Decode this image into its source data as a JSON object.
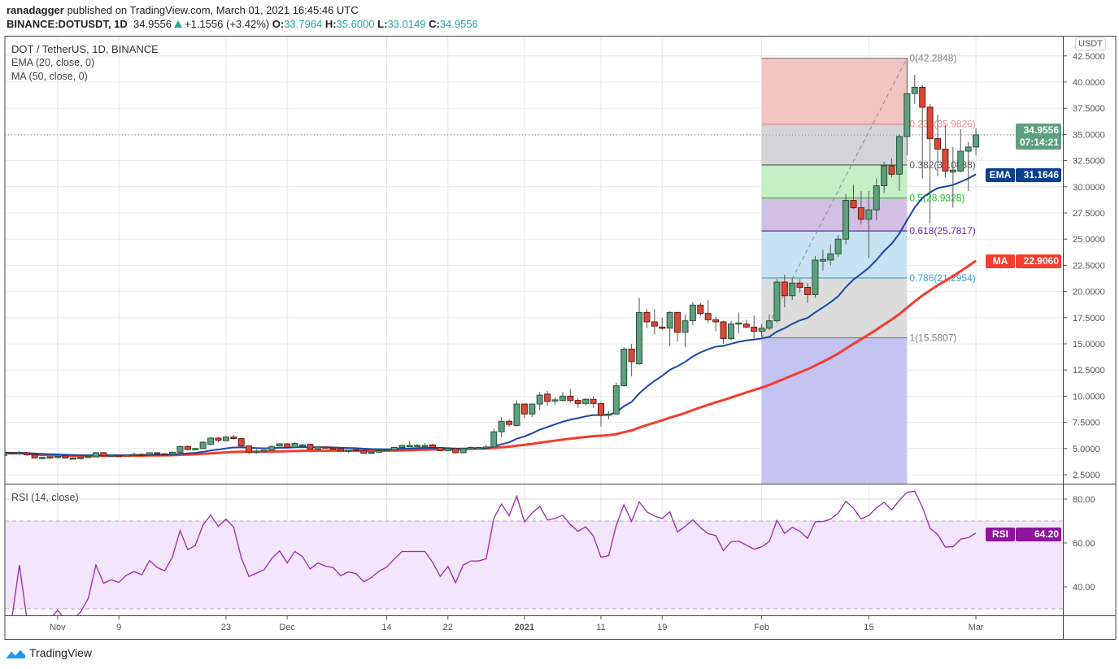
{
  "header": {
    "author": "ranadagger",
    "published": "published on TradingView.com, March 01, 2021 16:45:46 UTC",
    "symbol": "BINANCE:DOTUSDT, 1D",
    "last": "34.9556",
    "change": "+1.1556 (+3.42%)",
    "o_label": "O:",
    "o": "33.7964",
    "h_label": "H:",
    "h": "35.6000",
    "l_label": "L:",
    "l": "33.0149",
    "c_label": "C:",
    "c": "34.9556"
  },
  "legend": {
    "title": "DOT / TetherUS, 1D, BINANCE",
    "ema": "EMA (20, close, 0)",
    "ma": "MA (50, close, 0)",
    "rsi": "RSI (14, close)"
  },
  "currency_button": "USDT",
  "price_tag": {
    "value": "34.9556",
    "countdown": "07:14:21",
    "color": "#5b9f7c"
  },
  "ema_tag": {
    "label": "EMA",
    "value": "31.1646",
    "color": "#0d3f8f"
  },
  "ma_tag": {
    "label": "MA",
    "value": "22.9060",
    "color": "#f23d2f"
  },
  "rsi_tag": {
    "label": "RSI",
    "value": "64.20",
    "color": "#8e1599"
  },
  "footer": {
    "brand": "TradingView"
  },
  "colors": {
    "up": "#5e9f7c",
    "up_border": "#24553a",
    "down": "#d8493a",
    "down_border": "#6e1a10",
    "ema": "#1848a8",
    "ma": "#f23d2f",
    "rsi": "#9c27b0"
  },
  "chart_data": {
    "type": "candlestick",
    "title": "DOT / TetherUS, 1D, BINANCE",
    "start_date": "2020-10-25",
    "interval": "1D",
    "ylim": [
      2.5,
      42.5
    ],
    "y_ticks": [
      "2.5000",
      "5.0000",
      "7.5000",
      "10.0000",
      "12.5000",
      "15.0000",
      "17.5000",
      "20.0000",
      "22.5000",
      "25.0000",
      "27.5000",
      "30.0000",
      "32.5000",
      "35.0000",
      "37.5000",
      "40.0000",
      "42.5000"
    ],
    "x_ticks": [
      {
        "label": "Nov",
        "index": 7
      },
      {
        "label": "9",
        "index": 15
      },
      {
        "label": "23",
        "index": 29
      },
      {
        "label": "Dec",
        "index": 37
      },
      {
        "label": "14",
        "index": 50
      },
      {
        "label": "22",
        "index": 58
      },
      {
        "label": "2021",
        "index": 68
      },
      {
        "label": "11",
        "index": 78
      },
      {
        "label": "19",
        "index": 86
      },
      {
        "label": "Feb",
        "index": 99
      },
      {
        "label": "15",
        "index": 113
      },
      {
        "label": "Mar",
        "index": 127
      }
    ],
    "ohlc": [
      [
        4.35,
        4.7,
        4.3,
        4.6
      ],
      [
        4.6,
        4.7,
        4.45,
        4.5
      ],
      [
        4.5,
        4.75,
        4.4,
        4.6
      ],
      [
        4.6,
        4.65,
        4.3,
        4.4
      ],
      [
        4.4,
        4.45,
        4.05,
        4.1
      ],
      [
        4.1,
        4.2,
        3.95,
        4.15
      ],
      [
        4.15,
        4.25,
        4.05,
        4.2
      ],
      [
        4.2,
        4.3,
        4.1,
        4.25
      ],
      [
        4.3,
        4.35,
        4.05,
        4.1
      ],
      [
        4.1,
        4.15,
        3.95,
        4.1
      ],
      [
        4.1,
        4.2,
        3.95,
        4.15
      ],
      [
        4.15,
        4.3,
        4.1,
        4.25
      ],
      [
        4.2,
        4.7,
        4.2,
        4.6
      ],
      [
        4.6,
        4.65,
        4.25,
        4.3
      ],
      [
        4.3,
        4.4,
        4.25,
        4.35
      ],
      [
        4.35,
        4.4,
        4.25,
        4.3
      ],
      [
        4.3,
        4.45,
        4.25,
        4.4
      ],
      [
        4.4,
        4.6,
        4.35,
        4.45
      ],
      [
        4.45,
        4.55,
        4.35,
        4.4
      ],
      [
        4.4,
        4.65,
        4.35,
        4.6
      ],
      [
        4.6,
        4.65,
        4.45,
        4.5
      ],
      [
        4.5,
        4.55,
        4.4,
        4.45
      ],
      [
        4.45,
        4.7,
        4.4,
        4.65
      ],
      [
        4.65,
        5.3,
        4.6,
        5.2
      ],
      [
        5.2,
        5.3,
        4.85,
        4.9
      ],
      [
        4.95,
        5.05,
        4.85,
        5.0
      ],
      [
        5.0,
        5.7,
        4.95,
        5.6
      ],
      [
        5.4,
        6.1,
        5.3,
        6.0
      ],
      [
        6.0,
        6.1,
        5.6,
        5.8
      ],
      [
        5.75,
        6.2,
        5.7,
        6.1
      ],
      [
        6.1,
        6.3,
        5.85,
        5.95
      ],
      [
        5.95,
        6.0,
        5.15,
        5.25
      ],
      [
        5.25,
        5.3,
        4.5,
        4.65
      ],
      [
        4.65,
        4.9,
        4.5,
        4.75
      ],
      [
        4.75,
        4.9,
        4.6,
        4.85
      ],
      [
        4.85,
        5.3,
        4.8,
        5.2
      ],
      [
        5.25,
        5.5,
        5.2,
        5.45
      ],
      [
        5.45,
        5.5,
        5.05,
        5.1
      ],
      [
        5.1,
        5.6,
        5.05,
        5.5
      ],
      [
        5.35,
        5.45,
        5.25,
        5.35
      ],
      [
        5.4,
        5.45,
        4.9,
        4.95
      ],
      [
        4.95,
        5.2,
        4.9,
        5.15
      ],
      [
        5.15,
        5.2,
        5.0,
        5.05
      ],
      [
        5.05,
        5.1,
        4.95,
        5.0
      ],
      [
        5.0,
        5.05,
        4.7,
        4.75
      ],
      [
        4.75,
        4.9,
        4.6,
        4.85
      ],
      [
        4.9,
        4.95,
        4.75,
        4.8
      ],
      [
        4.8,
        4.85,
        4.5,
        4.55
      ],
      [
        4.55,
        4.7,
        4.5,
        4.65
      ],
      [
        4.65,
        4.85,
        4.6,
        4.8
      ],
      [
        4.85,
        4.95,
        4.8,
        4.9
      ],
      [
        4.85,
        5.15,
        4.8,
        5.1
      ],
      [
        5.1,
        5.35,
        5.05,
        5.3
      ],
      [
        5.3,
        5.7,
        5.25,
        5.3
      ],
      [
        5.3,
        5.45,
        5.2,
        5.3
      ],
      [
        5.3,
        5.55,
        5.25,
        5.3
      ],
      [
        5.35,
        5.45,
        5.05,
        5.1
      ],
      [
        5.1,
        5.15,
        4.75,
        4.8
      ],
      [
        4.8,
        5.05,
        4.75,
        5.0
      ],
      [
        5.0,
        5.1,
        4.55,
        4.6
      ],
      [
        4.6,
        5.05,
        4.55,
        5.0
      ],
      [
        5.0,
        5.2,
        4.95,
        5.1
      ],
      [
        5.1,
        5.15,
        5.05,
        5.1
      ],
      [
        5.1,
        5.35,
        5.0,
        5.15
      ],
      [
        5.15,
        6.9,
        5.1,
        6.6
      ],
      [
        6.6,
        8.0,
        6.1,
        7.6
      ],
      [
        7.6,
        7.8,
        7.1,
        7.3
      ],
      [
        7.2,
        9.6,
        7.1,
        9.25
      ],
      [
        9.25,
        9.3,
        7.9,
        8.3
      ],
      [
        8.3,
        9.3,
        8.0,
        9.25
      ],
      [
        9.25,
        10.4,
        8.7,
        10.1
      ],
      [
        10.2,
        10.5,
        9.1,
        9.5
      ],
      [
        9.55,
        9.9,
        9.2,
        9.65
      ],
      [
        9.6,
        10.4,
        9.5,
        10.0
      ],
      [
        10.0,
        10.7,
        9.4,
        9.6
      ],
      [
        9.6,
        9.8,
        8.9,
        9.3
      ],
      [
        9.3,
        9.8,
        9.1,
        9.7
      ],
      [
        9.7,
        10.0,
        8.9,
        9.3
      ],
      [
        9.3,
        9.4,
        7.1,
        8.2
      ],
      [
        8.2,
        8.6,
        7.8,
        8.3
      ],
      [
        8.3,
        11.3,
        8.2,
        11.0
      ],
      [
        11.0,
        14.7,
        10.9,
        14.5
      ],
      [
        14.5,
        15.0,
        11.9,
        13.3
      ],
      [
        13.1,
        19.4,
        13.0,
        18.0
      ],
      [
        18.0,
        18.3,
        16.5,
        17.1
      ],
      [
        17.1,
        18.3,
        15.9,
        16.7
      ],
      [
        16.6,
        17.5,
        16.3,
        16.5
      ],
      [
        16.5,
        18.1,
        14.8,
        18.0
      ],
      [
        18.0,
        18.0,
        15.2,
        16.1
      ],
      [
        16.1,
        17.8,
        14.7,
        17.2
      ],
      [
        17.2,
        19.0,
        16.8,
        18.7
      ],
      [
        18.7,
        18.9,
        17.7,
        17.9
      ],
      [
        17.9,
        19.2,
        17.0,
        17.3
      ],
      [
        17.3,
        17.6,
        16.2,
        17.1
      ],
      [
        17.1,
        17.2,
        15.0,
        15.5
      ],
      [
        15.5,
        17.2,
        15.3,
        16.9
      ],
      [
        16.95,
        18.0,
        16.0,
        17.0
      ],
      [
        16.9,
        17.3,
        16.5,
        16.6
      ],
      [
        16.6,
        17.7,
        15.5,
        16.2
      ],
      [
        16.2,
        16.9,
        15.7,
        16.5
      ],
      [
        16.5,
        17.8,
        16.3,
        17.2
      ],
      [
        17.2,
        21.2,
        17.0,
        20.9
      ],
      [
        20.9,
        21.6,
        18.5,
        19.6
      ],
      [
        19.6,
        21.3,
        19.2,
        20.8
      ],
      [
        20.8,
        21.2,
        19.9,
        20.4
      ],
      [
        20.4,
        20.8,
        18.9,
        19.7
      ],
      [
        19.7,
        23.4,
        19.4,
        23.0
      ],
      [
        22.9,
        24.0,
        22.0,
        23.05
      ],
      [
        23.0,
        24.5,
        22.5,
        23.6
      ],
      [
        23.6,
        25.4,
        23.3,
        25.0
      ],
      [
        25.0,
        29.3,
        24.5,
        28.7
      ],
      [
        28.7,
        30.2,
        27.9,
        28.0
      ],
      [
        28.0,
        29.6,
        26.4,
        26.9
      ],
      [
        26.9,
        29.6,
        23.2,
        27.8
      ],
      [
        27.8,
        30.8,
        26.8,
        30.1
      ],
      [
        30.1,
        32.4,
        29.4,
        32.0
      ],
      [
        32.0,
        32.7,
        30.9,
        31.2
      ],
      [
        31.2,
        35.0,
        29.6,
        34.8
      ],
      [
        34.8,
        42.2848,
        33.0,
        38.9
      ],
      [
        38.9,
        40.7,
        37.9,
        39.5
      ],
      [
        39.5,
        39.7,
        30.8,
        37.6
      ],
      [
        37.6,
        37.9,
        26.5,
        34.6
      ],
      [
        34.6,
        36.9,
        31.0,
        33.6
      ],
      [
        33.6,
        35.9,
        30.9,
        31.5
      ],
      [
        31.4,
        33.8,
        28.0,
        31.6
      ],
      [
        31.5,
        35.5,
        31.4,
        33.4
      ],
      [
        33.4,
        34.3,
        29.6,
        33.8
      ],
      [
        33.7964,
        35.6,
        33.0149,
        34.9556
      ]
    ],
    "indicators": [
      {
        "name": "EMA (20, close, 0)",
        "last": 31.1646
      },
      {
        "name": "MA (50, close, 0)",
        "last": 22.906
      },
      {
        "name": "RSI (14, close)",
        "last": 64.2,
        "ylim": [
          28,
          86
        ],
        "y_ticks": [
          "40.00",
          "60.00",
          "80.00"
        ],
        "bands": [
          30,
          70
        ]
      }
    ],
    "fibonacci": {
      "from_index": 99,
      "to_index": 118,
      "levels": [
        {
          "ratio": 0,
          "price": 42.2848,
          "label": "0(42.2848)",
          "color": "#808080",
          "fill": "#f2c4c4"
        },
        {
          "ratio": 0.236,
          "price": 35.9826,
          "label": "0.236(35.9826)",
          "color": "#f08a8a",
          "fill": "#d3d3d8"
        },
        {
          "ratio": 0.382,
          "price": 32.0838,
          "label": "0.382(32.0838)",
          "color": "#555555",
          "fill": "#c4eec4"
        },
        {
          "ratio": 0.5,
          "price": 28.9328,
          "label": "0.5(28.9328)",
          "color": "#22c422",
          "fill": "#d2c0e4"
        },
        {
          "ratio": 0.618,
          "price": 25.7817,
          "label": "0.618(25.7817)",
          "color": "#5b2c9e",
          "fill": "#c7e2f3"
        },
        {
          "ratio": 0.786,
          "price": 21.2954,
          "label": "0.786(21.2954)",
          "color": "#3a9bd5",
          "fill": "#dcdcdc"
        },
        {
          "ratio": 1,
          "price": 15.5807,
          "label": "1(15.5807)",
          "color": "#808080",
          "fill": "#c4c4f2"
        }
      ]
    }
  }
}
